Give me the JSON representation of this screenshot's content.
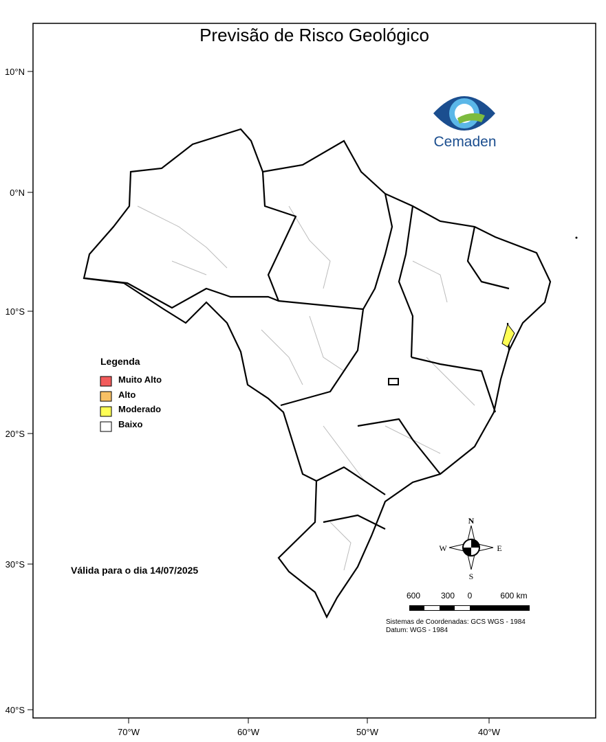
{
  "title": "Previsão de Risco Geológico",
  "latitude_labels": [
    "10°N",
    "0°N",
    "10°S",
    "20°S",
    "30°S",
    "40°S"
  ],
  "longitude_labels": [
    "70°W",
    "60°W",
    "50°W",
    "40°W"
  ],
  "legend": {
    "title": "Legenda",
    "items": [
      {
        "label": "Muito Alto",
        "color": "#f25b5b"
      },
      {
        "label": "Alto",
        "color": "#f8c064"
      },
      {
        "label": "Moderado",
        "color": "#ffff55"
      },
      {
        "label": "Baixo",
        "color": "#ffffff"
      }
    ]
  },
  "validity": "Válida para o dia 14/07/2025",
  "logo": "Cemaden",
  "compass": {
    "north": "N",
    "south": "S",
    "east": "E",
    "west": "W"
  },
  "scale_labels": [
    "600",
    "300",
    "0",
    "600 km"
  ],
  "datum": [
    "Sistemas de Coordenadas: GCS WGS - 1984",
    "Datum: WGS - 1984"
  ]
}
